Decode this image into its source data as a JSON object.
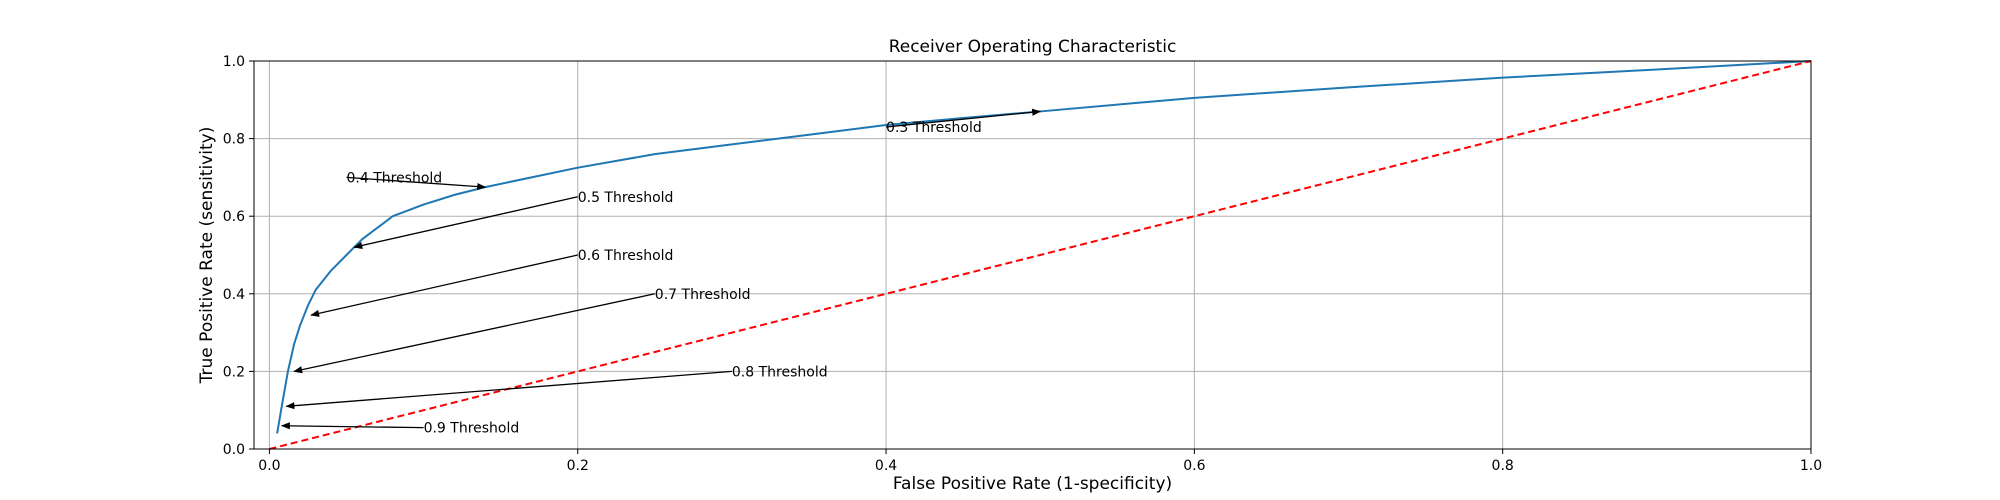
{
  "chart_data": {
    "type": "line",
    "title": "Receiver Operating Characteristic",
    "xlabel": "False Positive Rate (1-specificity)",
    "ylabel": "True Positive Rate (sensitivity)",
    "xlim": [
      -0.01,
      1.0
    ],
    "ylim": [
      0.0,
      1.0
    ],
    "xticks": [
      "0.0",
      "0.2",
      "0.4",
      "0.6",
      "0.8",
      "1.0"
    ],
    "yticks": [
      "0.0",
      "0.2",
      "0.4",
      "0.6",
      "0.8",
      "1.0"
    ],
    "grid": true,
    "legend": "none",
    "series": [
      {
        "color": "#1f77b4",
        "style": "solid",
        "x": [
          0.005,
          0.008,
          0.012,
          0.016,
          0.02,
          0.025,
          0.03,
          0.04,
          0.05,
          0.06,
          0.07,
          0.08,
          0.1,
          0.12,
          0.14,
          0.17,
          0.2,
          0.25,
          0.3,
          0.35,
          0.4,
          0.45,
          0.5,
          0.6,
          0.7,
          0.8,
          0.9,
          1.0
        ],
        "y": [
          0.04,
          0.11,
          0.2,
          0.27,
          0.32,
          0.37,
          0.41,
          0.46,
          0.5,
          0.54,
          0.57,
          0.6,
          0.63,
          0.655,
          0.675,
          0.7,
          0.725,
          0.76,
          0.785,
          0.81,
          0.835,
          0.853,
          0.87,
          0.905,
          0.932,
          0.957,
          0.978,
          1.0
        ]
      },
      {
        "color": "#ff0000",
        "style": "dashed",
        "x": [
          0.0,
          1.0
        ],
        "y": [
          0.0,
          1.0
        ]
      }
    ],
    "annotations": [
      {
        "text": "0.3 Threshold",
        "text_x": 0.4,
        "text_y": 0.83,
        "point_x": 0.5,
        "point_y": 0.87
      },
      {
        "text": "0.4 Threshold",
        "text_x": 0.05,
        "text_y": 0.7,
        "point_x": 0.14,
        "point_y": 0.675
      },
      {
        "text": "0.5 Threshold",
        "text_x": 0.2,
        "text_y": 0.65,
        "point_x": 0.055,
        "point_y": 0.52
      },
      {
        "text": "0.6 Threshold",
        "text_x": 0.2,
        "text_y": 0.5,
        "point_x": 0.027,
        "point_y": 0.345
      },
      {
        "text": "0.7 Threshold",
        "text_x": 0.25,
        "text_y": 0.4,
        "point_x": 0.016,
        "point_y": 0.2
      },
      {
        "text": "0.8 Threshold",
        "text_x": 0.3,
        "text_y": 0.2,
        "point_x": 0.011,
        "point_y": 0.11
      },
      {
        "text": "0.9 Threshold",
        "text_x": 0.1,
        "text_y": 0.055,
        "point_x": 0.008,
        "point_y": 0.06
      }
    ]
  }
}
